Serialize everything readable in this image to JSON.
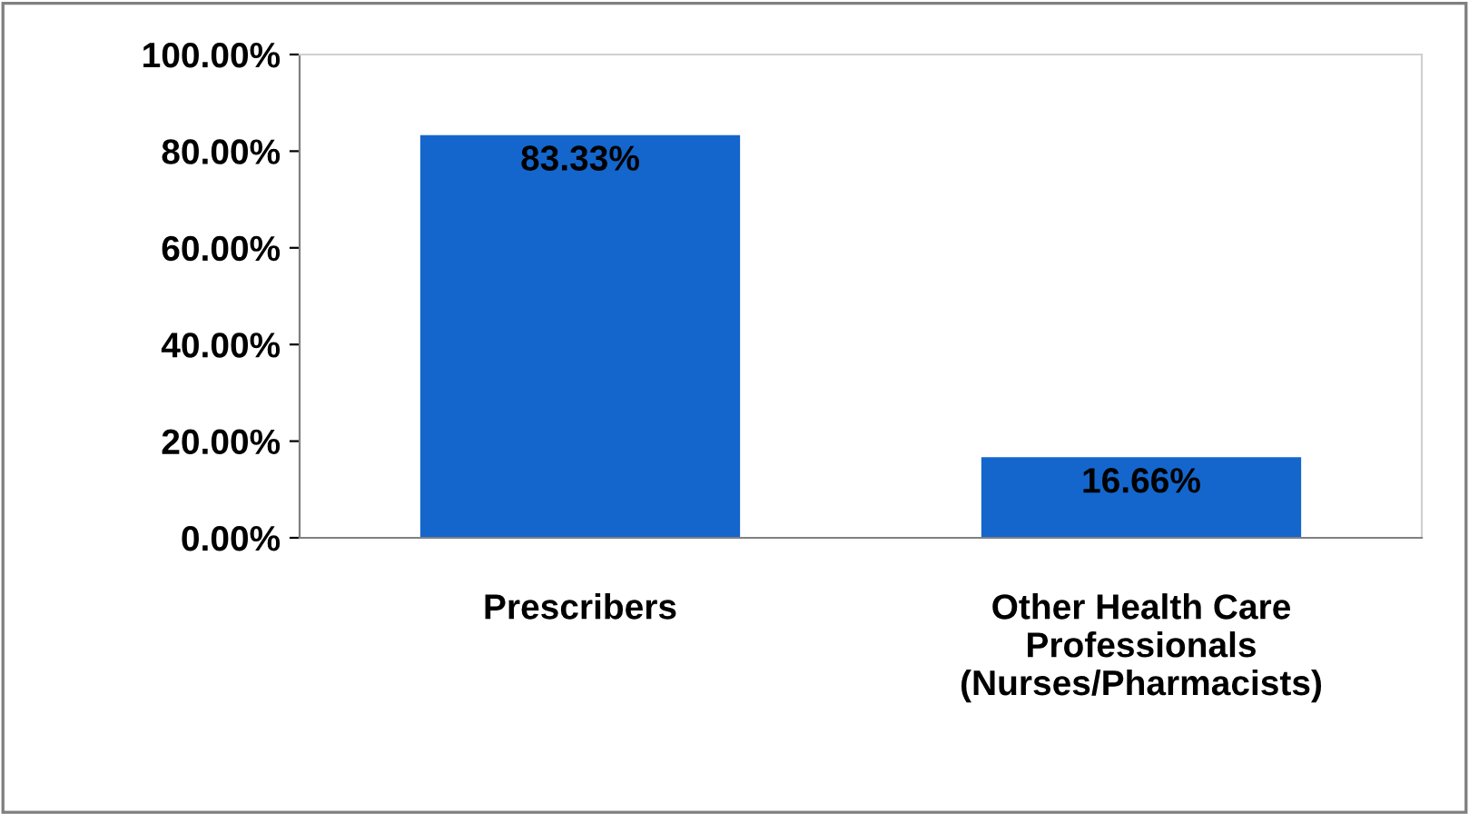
{
  "chart_data": {
    "type": "bar",
    "categories": [
      "Prescribers",
      "Other Health Care\nProfessionals\n(Nurses/Pharmacists)"
    ],
    "values": [
      83.33,
      16.66
    ],
    "color": "#1466cc",
    "value_labels": [
      "83.33%",
      "16.66%"
    ],
    "ylim": [
      0,
      100
    ],
    "yticks": [
      {
        "value": 0,
        "label": "0.00%"
      },
      {
        "value": 20,
        "label": "20.00%"
      },
      {
        "value": 40,
        "label": "40.00%"
      },
      {
        "value": 60,
        "label": "60.00%"
      },
      {
        "value": 80,
        "label": "80.00%"
      },
      {
        "value": 100,
        "label": "100.00%"
      }
    ],
    "grid": false,
    "legend": false
  }
}
